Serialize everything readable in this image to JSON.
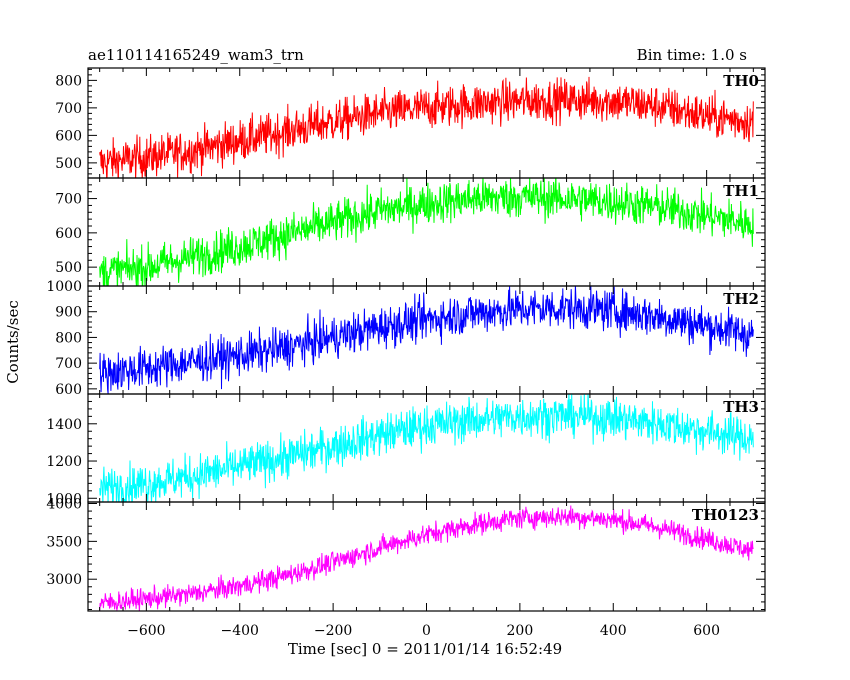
{
  "chart_data": {
    "type": "line",
    "title": "ae110114165249_wam3_trn",
    "subtitle": "Bin time: 1.0 s",
    "xlabel": "Time [sec] 0 = 2011/01/14 16:52:49",
    "ylabel": "Counts/sec",
    "xlim": [
      -725,
      725
    ],
    "x_ticks": [
      "−600",
      "−400",
      "−200",
      "0",
      "200",
      "400",
      "600"
    ],
    "x_tick_values": [
      -600,
      -400,
      -200,
      0,
      200,
      400,
      600
    ],
    "grid": false,
    "legend": "none",
    "panels": [
      {
        "name": "TH0",
        "color": "#ff0000",
        "ylim": [
          445,
          845
        ],
        "y_ticks": [
          500,
          600,
          700,
          800
        ],
        "x": [
          -700,
          -600,
          -500,
          -400,
          -300,
          -200,
          -100,
          0,
          100,
          200,
          300,
          400,
          500,
          600,
          700
        ],
        "values": [
          500,
          520,
          545,
          580,
          615,
          650,
          680,
          700,
          715,
          725,
          730,
          725,
          705,
          670,
          650
        ],
        "noise": 38
      },
      {
        "name": "TH1",
        "color": "#00ff00",
        "ylim": [
          445,
          760
        ],
        "y_ticks": [
          500,
          600,
          700
        ],
        "x": [
          -700,
          -600,
          -500,
          -400,
          -300,
          -200,
          -100,
          0,
          100,
          200,
          300,
          400,
          500,
          600,
          700
        ],
        "values": [
          485,
          500,
          530,
          560,
          595,
          630,
          665,
          685,
          700,
          705,
          700,
          690,
          675,
          650,
          625
        ],
        "noise": 30
      },
      {
        "name": "TH2",
        "color": "#0000ff",
        "ylim": [
          580,
          1000
        ],
        "y_ticks": [
          600,
          700,
          800,
          900,
          1000
        ],
        "x": [
          -700,
          -600,
          -500,
          -400,
          -300,
          -200,
          -100,
          0,
          100,
          200,
          300,
          400,
          500,
          600,
          700
        ],
        "values": [
          660,
          680,
          705,
          730,
          760,
          800,
          840,
          870,
          895,
          910,
          915,
          905,
          880,
          845,
          810
        ],
        "noise": 40
      },
      {
        "name": "TH3",
        "color": "#00ffff",
        "ylim": [
          980,
          1560
        ],
        "y_ticks": [
          1000,
          1200,
          1400
        ],
        "x": [
          -700,
          -600,
          -500,
          -400,
          -300,
          -200,
          -100,
          0,
          100,
          200,
          300,
          400,
          500,
          600,
          700
        ],
        "values": [
          1050,
          1080,
          1120,
          1170,
          1220,
          1280,
          1340,
          1390,
          1420,
          1440,
          1445,
          1430,
          1400,
          1360,
          1320
        ],
        "noise": 55
      },
      {
        "name": "TH0123",
        "color": "#ff00ff",
        "ylim": [
          2580,
          4020
        ],
        "y_ticks": [
          3000,
          3500,
          4000
        ],
        "x": [
          -700,
          -600,
          -500,
          -400,
          -300,
          -200,
          -100,
          0,
          100,
          200,
          300,
          400,
          500,
          600,
          700
        ],
        "values": [
          2680,
          2740,
          2810,
          2910,
          3050,
          3220,
          3420,
          3590,
          3720,
          3810,
          3830,
          3790,
          3680,
          3530,
          3370
        ],
        "noise": 70
      }
    ]
  }
}
